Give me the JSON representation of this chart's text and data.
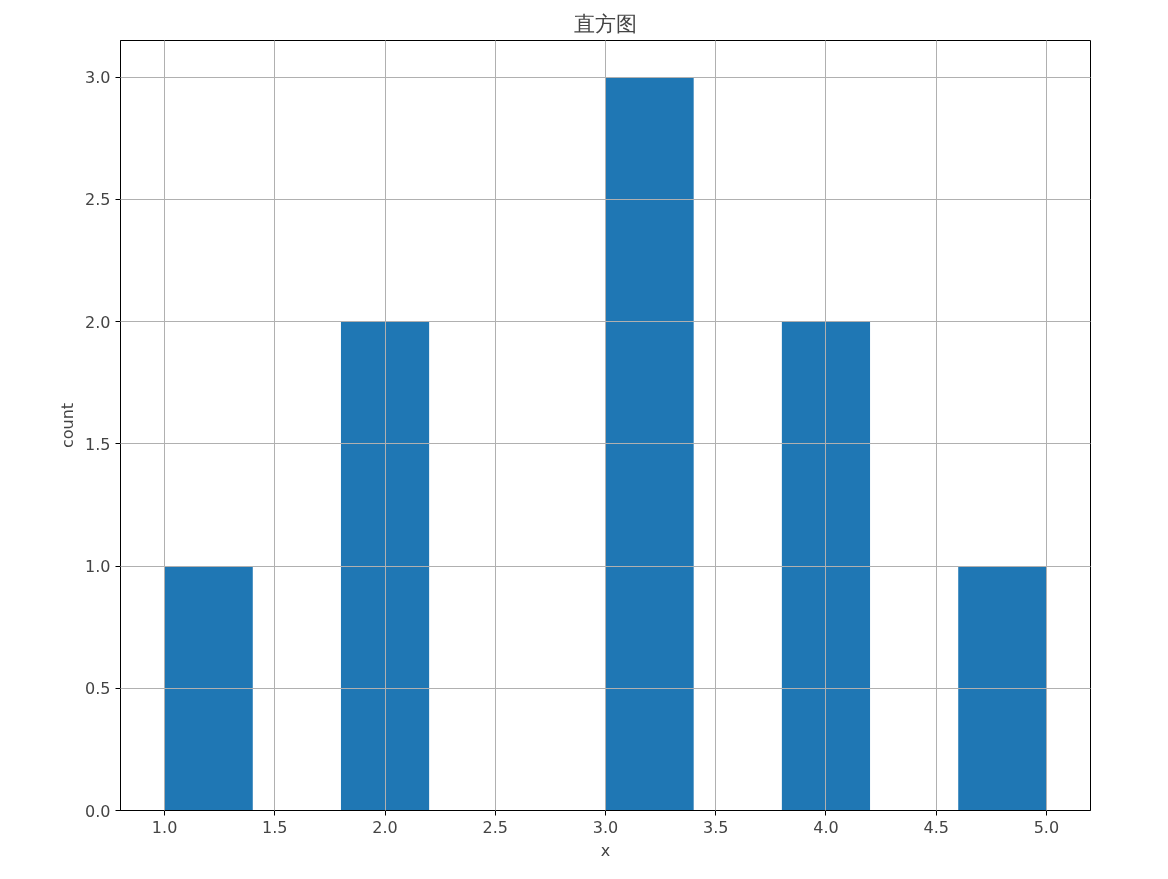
{
  "chart_data": {
    "type": "histogram",
    "title": "直方图",
    "xlabel": "x",
    "ylabel": "count",
    "bins": [
      1.0,
      1.4,
      1.8,
      2.2,
      2.6,
      3.0,
      3.4,
      3.8,
      4.2,
      4.6,
      5.0
    ],
    "values": [
      1,
      0,
      2,
      0,
      0,
      3,
      0,
      2,
      0,
      1
    ],
    "color": "#1f77b4",
    "xlim": [
      0.8,
      5.2
    ],
    "ylim": [
      0,
      3.15
    ],
    "xticks": [
      {
        "value": 1.0,
        "label": "1.0"
      },
      {
        "value": 1.5,
        "label": "1.5"
      },
      {
        "value": 2.0,
        "label": "2.0"
      },
      {
        "value": 2.5,
        "label": "2.5"
      },
      {
        "value": 3.0,
        "label": "3.0"
      },
      {
        "value": 3.5,
        "label": "3.5"
      },
      {
        "value": 4.0,
        "label": "4.0"
      },
      {
        "value": 4.5,
        "label": "4.5"
      },
      {
        "value": 5.0,
        "label": "5.0"
      }
    ],
    "yticks": [
      {
        "value": 0,
        "label": "0.0"
      },
      {
        "value": 0.5,
        "label": "0.5"
      },
      {
        "value": 1.0,
        "label": "1.0"
      },
      {
        "value": 1.5,
        "label": "1.5"
      },
      {
        "value": 2.0,
        "label": "2.0"
      },
      {
        "value": 2.5,
        "label": "2.5"
      },
      {
        "value": 3.0,
        "label": "3.0"
      }
    ],
    "grid": true
  }
}
